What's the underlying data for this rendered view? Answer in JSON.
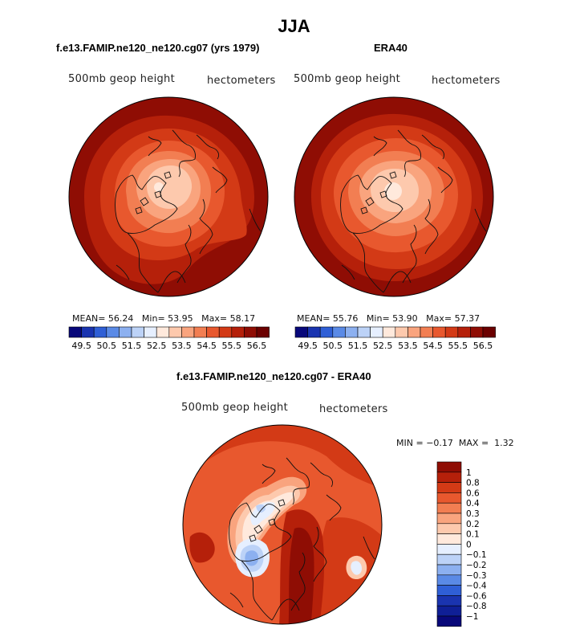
{
  "main_title": "JJA",
  "panels": [
    {
      "title": "f.e13.FAMIP.ne120_ne120.cg07 (yrs 1979)",
      "left_label": "500mb geop height",
      "right_label": "hectometers",
      "stats": {
        "mean_label": "MEAN=",
        "mean": "56.24",
        "min_label": "Min=",
        "min": "53.95",
        "max_label": "Max=",
        "max": "58.17"
      }
    },
    {
      "title": "ERA40",
      "left_label": "500mb geop height",
      "right_label": "hectometers",
      "stats": {
        "mean_label": "MEAN=",
        "mean": "55.76",
        "min_label": "Min=",
        "min": "53.90",
        "max_label": "Max=",
        "max": "57.37"
      }
    },
    {
      "title": "f.e13.FAMIP.ne120_ne120.cg07 - ERA40",
      "left_label": "500mb geop height",
      "right_label": "hectometers",
      "stats": {
        "min_label": "MIN =",
        "min": "−0.17",
        "max_label": "MAX =",
        "max": "1.32"
      }
    }
  ],
  "chart_data": [
    {
      "type": "heatmap",
      "projection": "north polar stereographic",
      "title": "f.e13.FAMIP.ne120_ne120.cg07 (yrs 1979)",
      "variable": "500mb geop height",
      "units": "hectometers",
      "mean": 56.24,
      "min": 53.95,
      "max": 58.17,
      "contour_levels": [
        49.5,
        50,
        50.5,
        51,
        51.5,
        52,
        52.5,
        53,
        53.5,
        54,
        54.5,
        55,
        55.5,
        56,
        56.5
      ],
      "colorbar_tick_labels": [
        "49.5",
        "50.5",
        "51.5",
        "52.5",
        "53.5",
        "54.5",
        "55.5",
        "56.5"
      ],
      "colors": [
        "#08087a",
        "#1a34b0",
        "#2f5fd6",
        "#5a8ae6",
        "#8cb0f0",
        "#bcd2f7",
        "#e6efff",
        "#ffe9dc",
        "#fdc9ad",
        "#f9a47e",
        "#f27e52",
        "#e8582e",
        "#d33a16",
        "#b5200a",
        "#8f0d04",
        "#6b0000"
      ]
    },
    {
      "type": "heatmap",
      "projection": "north polar stereographic",
      "title": "ERA40",
      "variable": "500mb geop height",
      "units": "hectometers",
      "mean": 55.76,
      "min": 53.9,
      "max": 57.37,
      "contour_levels": [
        49.5,
        50,
        50.5,
        51,
        51.5,
        52,
        52.5,
        53,
        53.5,
        54,
        54.5,
        55,
        55.5,
        56,
        56.5
      ],
      "colorbar_tick_labels": [
        "49.5",
        "50.5",
        "51.5",
        "52.5",
        "53.5",
        "54.5",
        "55.5",
        "56.5"
      ],
      "colors": [
        "#08087a",
        "#1a34b0",
        "#2f5fd6",
        "#5a8ae6",
        "#8cb0f0",
        "#bcd2f7",
        "#e6efff",
        "#ffe9dc",
        "#fdc9ad",
        "#f9a47e",
        "#f27e52",
        "#e8582e",
        "#d33a16",
        "#b5200a",
        "#8f0d04",
        "#6b0000"
      ]
    },
    {
      "type": "heatmap",
      "projection": "north polar stereographic",
      "title": "f.e13.FAMIP.ne120_ne120.cg07 - ERA40",
      "variable": "500mb geop height",
      "units": "hectometers",
      "min": -0.17,
      "max": 1.32,
      "contour_levels": [
        1,
        0.8,
        0.6,
        0.4,
        0.3,
        0.2,
        0.1,
        0,
        -0.1,
        -0.2,
        -0.3,
        -0.4,
        -0.6,
        -0.8,
        -1
      ],
      "colorbar_tick_labels": [
        "1",
        "0.8",
        "0.6",
        "0.4",
        "0.3",
        "0.2",
        "0.1",
        "0",
        "−0.1",
        "−0.2",
        "−0.3",
        "−0.4",
        "−0.6",
        "−0.8",
        "−1"
      ],
      "colors": [
        "#8f0d04",
        "#b5200a",
        "#d33a16",
        "#e8582e",
        "#f27e52",
        "#f9a47e",
        "#fdc9ad",
        "#ffe9dc",
        "#e6efff",
        "#bcd2f7",
        "#8cb0f0",
        "#5a8ae6",
        "#2f5fd6",
        "#1a34b0",
        "#0f1f96",
        "#08087a"
      ]
    }
  ]
}
